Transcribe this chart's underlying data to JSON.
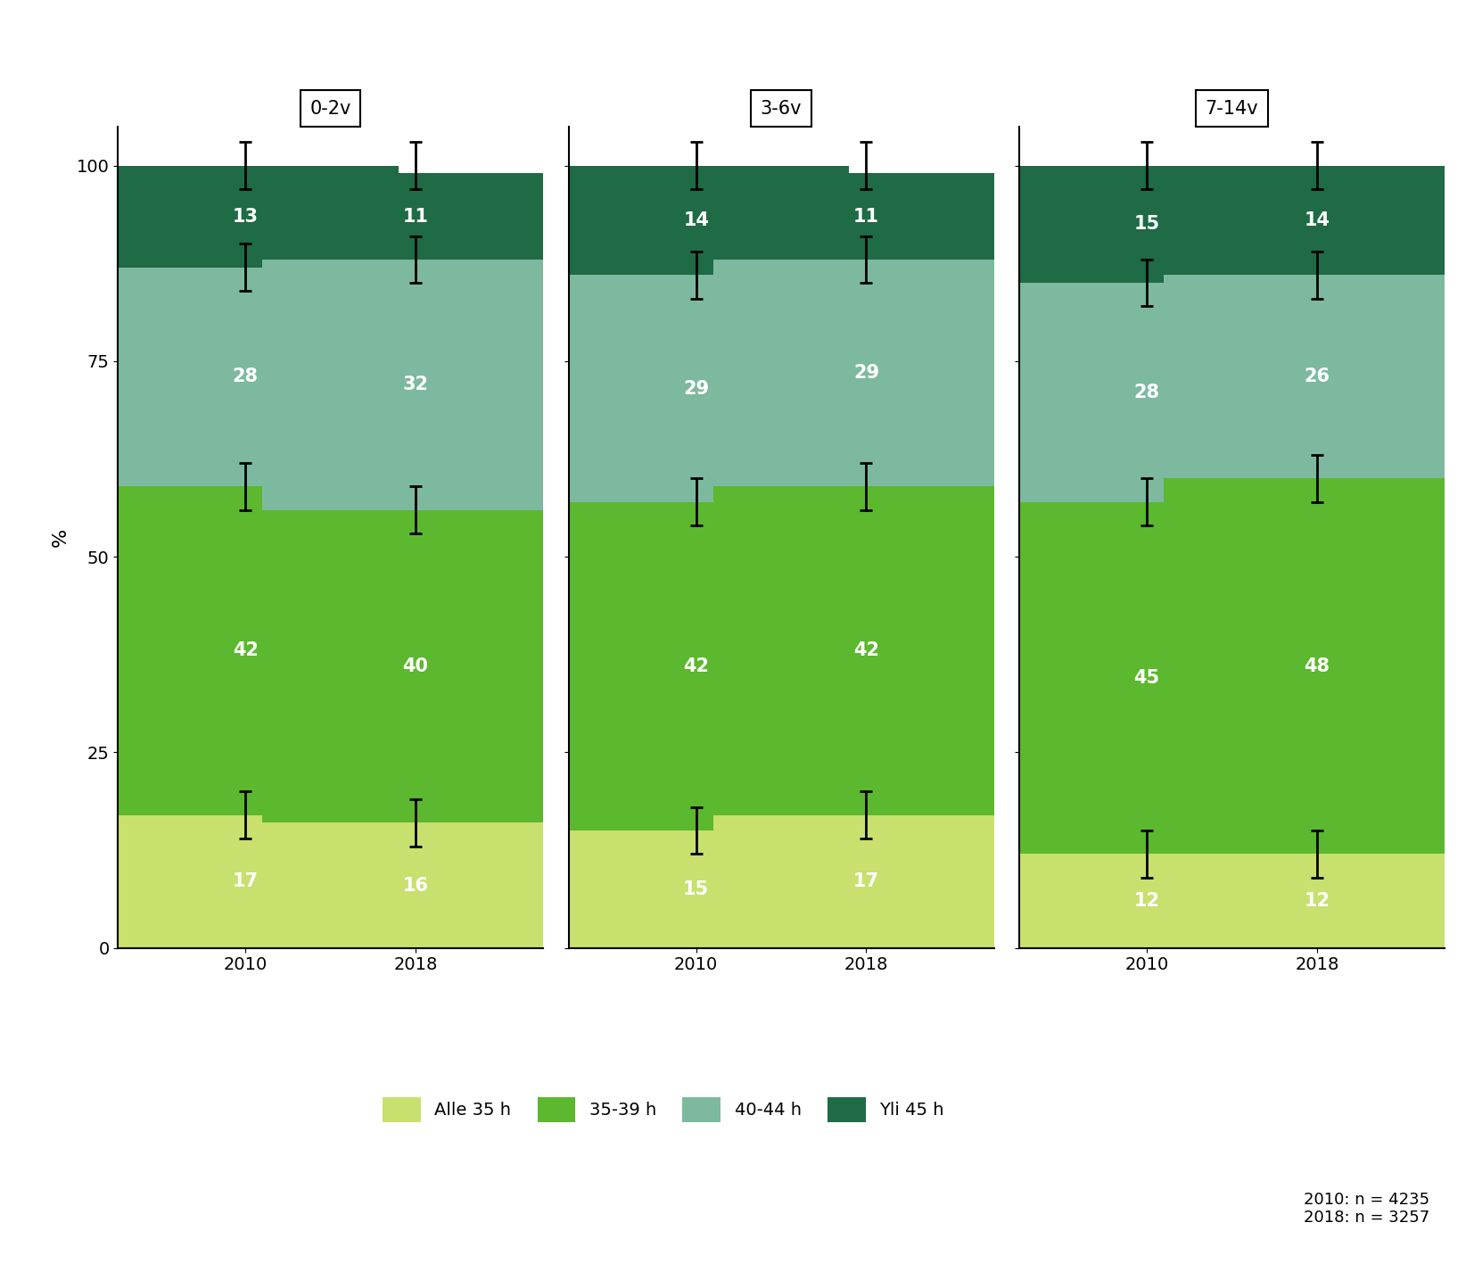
{
  "groups": [
    "0-2v",
    "3-6v",
    "7-14v"
  ],
  "years": [
    "2010",
    "2018"
  ],
  "colors": {
    "alle35": "#c8e06e",
    "35_39": "#5cb82e",
    "40_44": "#7db99e",
    "yli45": "#1e6b45"
  },
  "values": {
    "0-2v": {
      "2010": [
        17,
        42,
        28,
        13
      ],
      "2018": [
        16,
        40,
        32,
        11
      ]
    },
    "3-6v": {
      "2010": [
        15,
        42,
        29,
        14
      ],
      "2018": [
        17,
        42,
        29,
        11
      ]
    },
    "7-14v": {
      "2010": [
        12,
        45,
        28,
        15
      ],
      "2018": [
        12,
        48,
        26,
        14
      ]
    }
  },
  "error_bar_positions": {
    "0-2v": {
      "2010": [
        17,
        59,
        87,
        100
      ],
      "2018": [
        16,
        56,
        88,
        100
      ]
    },
    "3-6v": {
      "2010": [
        15,
        57,
        86,
        100
      ],
      "2018": [
        17,
        59,
        88,
        100
      ]
    },
    "7-14v": {
      "2010": [
        12,
        57,
        85,
        100
      ],
      "2018": [
        12,
        60,
        86,
        100
      ]
    }
  },
  "error_bar_size": 3,
  "legend_labels": [
    "Alle 35 h",
    "35-39 h",
    "40-44 h",
    "Yli 45 h"
  ],
  "ylabel": "%",
  "note": "2010: n = 4235\n2018: n = 3257",
  "bar_width": 0.72,
  "x_positions": [
    0.3,
    0.7
  ],
  "xlim": [
    0.0,
    1.0
  ],
  "ylim": [
    0,
    105
  ],
  "background_color": "#ffffff",
  "text_color": "#ffffff",
  "fontsize_bar": 15,
  "fontsize_axis": 14,
  "fontsize_legend": 14,
  "fontsize_note": 13,
  "fontsize_title": 15
}
